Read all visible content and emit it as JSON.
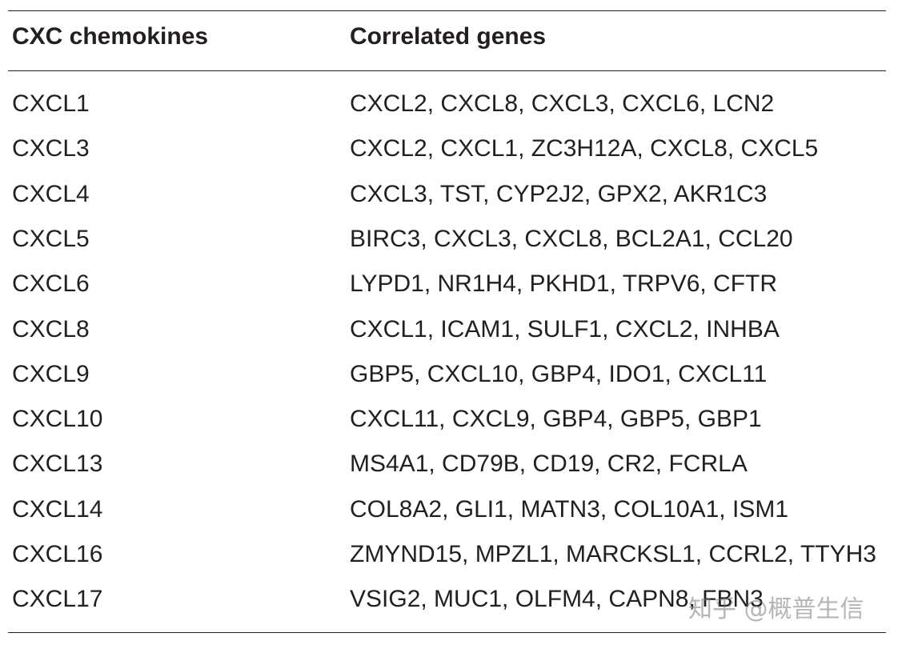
{
  "table": {
    "header": [
      "CXC chemokines",
      "Correlated genes"
    ],
    "rows": [
      [
        "CXCL1",
        "CXCL2, CXCL8, CXCL3, CXCL6, LCN2"
      ],
      [
        "CXCL3",
        "CXCL2, CXCL1, ZC3H12A, CXCL8, CXCL5"
      ],
      [
        "CXCL4",
        "CXCL3, TST, CYP2J2, GPX2, AKR1C3"
      ],
      [
        "CXCL5",
        "BIRC3, CXCL3, CXCL8, BCL2A1, CCL20"
      ],
      [
        "CXCL6",
        "LYPD1, NR1H4, PKHD1, TRPV6, CFTR"
      ],
      [
        "CXCL8",
        "CXCL1, ICAM1, SULF1, CXCL2, INHBA"
      ],
      [
        "CXCL9",
        "GBP5, CXCL10, GBP4, IDO1, CXCL11"
      ],
      [
        "CXCL10",
        "CXCL11, CXCL9, GBP4, GBP5, GBP1"
      ],
      [
        "CXCL13",
        "MS4A1, CD79B, CD19, CR2, FCRLA"
      ],
      [
        "CXCL14",
        "COL8A2, GLI1, MATN3, COL10A1, ISM1"
      ],
      [
        "CXCL16",
        "ZMYND15, MPZL1, MARCKSL1, CCRL2, TTYH3"
      ],
      [
        "CXCL17",
        "VSIG2, MUC1, OLFM4, CAPN8, FBN3"
      ]
    ]
  },
  "watermark": "知乎 @概普生信"
}
